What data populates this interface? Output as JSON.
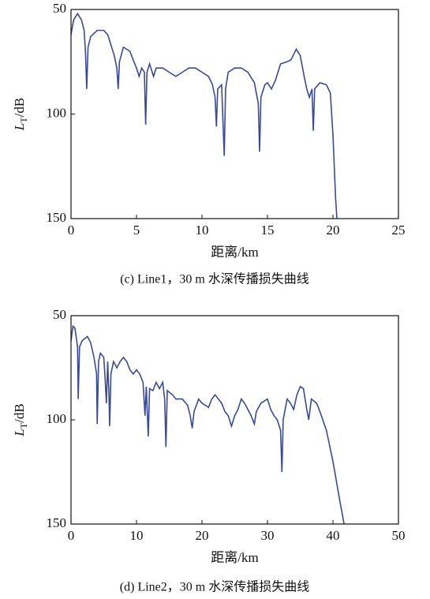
{
  "chart_data": [
    {
      "type": "line",
      "ylabel": {
        "main": "L",
        "sub": "T",
        "unit": "/dB"
      },
      "xlabel": "距离/km",
      "caption": "(c) Line1，30 m 水深传播损失曲线",
      "xlim": [
        0,
        25
      ],
      "xticks": [
        0,
        5,
        10,
        15,
        20,
        25
      ],
      "ylim": [
        150,
        50
      ],
      "yticks": [
        50,
        100,
        150
      ],
      "series": [
        {
          "color": "#3a4a9a",
          "x": [
            0,
            0.2,
            0.5,
            0.8,
            1.0,
            1.1,
            1.2,
            1.3,
            1.5,
            2,
            2.5,
            2.8,
            3,
            3.3,
            3.5,
            3.6,
            3.7,
            4,
            4.5,
            4.8,
            5,
            5.2,
            5.4,
            5.6,
            5.7,
            5.8,
            6,
            6.3,
            6.5,
            7,
            7.5,
            8,
            8.5,
            9,
            9.5,
            10,
            10.5,
            10.8,
            11,
            11.1,
            11.2,
            11.5,
            11.7,
            11.8,
            12,
            12.5,
            13,
            13.5,
            14,
            14.3,
            14.4,
            14.5,
            14.8,
            15,
            15.3,
            15.6,
            16,
            16.5,
            16.8,
            17.2,
            17.5,
            17.8,
            18,
            18.2,
            18.4,
            18.5,
            18.6,
            19,
            19.5,
            19.8,
            20,
            20.2,
            20.3
          ],
          "values": [
            62,
            55,
            52,
            55,
            60,
            70,
            88,
            68,
            63,
            60,
            60,
            62,
            66,
            72,
            78,
            88,
            75,
            68,
            70,
            75,
            78,
            82,
            78,
            80,
            105,
            80,
            76,
            82,
            78,
            78,
            80,
            82,
            80,
            78,
            78,
            80,
            82,
            86,
            92,
            106,
            88,
            86,
            120,
            88,
            80,
            78,
            78,
            80,
            85,
            95,
            118,
            92,
            86,
            85,
            88,
            84,
            76,
            75,
            74,
            69,
            72,
            82,
            88,
            92,
            88,
            108,
            88,
            85,
            86,
            90,
            110,
            140,
            150
          ]
        }
      ]
    },
    {
      "type": "line",
      "ylabel": {
        "main": "L",
        "sub": "T",
        "unit": "/dB"
      },
      "xlabel": "距离/km",
      "caption": "(d) Line2，30 m 水深传播损失曲线",
      "xlim": [
        0,
        50
      ],
      "xticks": [
        0,
        10,
        20,
        30,
        40,
        50
      ],
      "ylim": [
        150,
        50
      ],
      "yticks": [
        50,
        100,
        150
      ],
      "series": [
        {
          "color": "#3a4a9a",
          "x": [
            0,
            0.3,
            0.6,
            1,
            1.1,
            1.3,
            1.7,
            2.5,
            3,
            3.5,
            3.9,
            4,
            4.2,
            4.5,
            5,
            5.2,
            5.4,
            5.6,
            5.8,
            5.9,
            6.1,
            6.5,
            7,
            7.5,
            8,
            8.5,
            9,
            9.5,
            10,
            10.5,
            11,
            11.3,
            11.5,
            11.8,
            12,
            12.5,
            13,
            13.5,
            14,
            14.3,
            14.5,
            14.7,
            15.5,
            16,
            17,
            17.8,
            18.2,
            18.5,
            18.8,
            19.5,
            20,
            21,
            21.5,
            22,
            22.5,
            23,
            23.5,
            24,
            24.5,
            25,
            25.5,
            26,
            26.5,
            27,
            27.5,
            28,
            28.3,
            29,
            30,
            30.5,
            31,
            31.5,
            32,
            32.2,
            32.4,
            33,
            33.5,
            34,
            34.5,
            35,
            35.5,
            36,
            36.3,
            36.7,
            37.5,
            38,
            39,
            40,
            41,
            41.7
          ],
          "values": [
            62,
            55,
            56,
            65,
            90,
            65,
            62,
            60,
            63,
            70,
            78,
            102,
            72,
            68,
            70,
            80,
            92,
            72,
            88,
            103,
            78,
            72,
            75,
            72,
            70,
            72,
            76,
            78,
            76,
            78,
            82,
            98,
            84,
            108,
            85,
            86,
            82,
            85,
            82,
            90,
            113,
            86,
            88,
            90,
            90,
            93,
            98,
            104,
            96,
            90,
            92,
            94,
            90,
            88,
            90,
            92,
            96,
            98,
            103,
            98,
            95,
            90,
            92,
            95,
            98,
            102,
            96,
            92,
            90,
            95,
            98,
            100,
            105,
            125,
            100,
            90,
            92,
            95,
            88,
            84,
            85,
            95,
            100,
            90,
            92,
            96,
            105,
            120,
            138,
            150
          ]
        }
      ]
    }
  ]
}
